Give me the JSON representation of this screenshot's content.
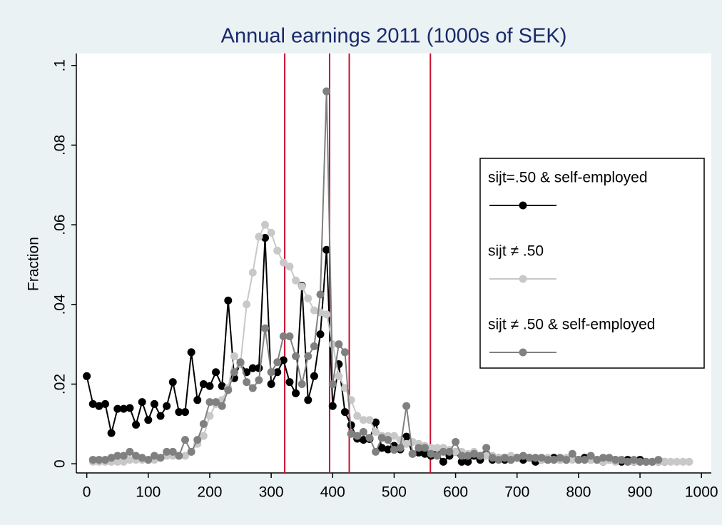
{
  "chart_data": {
    "type": "line",
    "title": "Annual earnings 2011 (1000s of SEK)",
    "y_label": "Fraction",
    "x": [
      0,
      10,
      20,
      30,
      40,
      50,
      60,
      70,
      80,
      90,
      100,
      110,
      120,
      130,
      140,
      150,
      160,
      170,
      180,
      190,
      200,
      210,
      220,
      230,
      240,
      250,
      260,
      270,
      280,
      290,
      300,
      310,
      320,
      330,
      340,
      350,
      360,
      370,
      380,
      390,
      400,
      410,
      420,
      430,
      440,
      450,
      460,
      470,
      480,
      490,
      500,
      510,
      520,
      530,
      540,
      550,
      560,
      570,
      580,
      590,
      600,
      610,
      620,
      630,
      640,
      650,
      660,
      670,
      680,
      690,
      700,
      710,
      720,
      730,
      740,
      750,
      760,
      770,
      780,
      790,
      800,
      810,
      820,
      830,
      840,
      850,
      860,
      870,
      880,
      890,
      900,
      910,
      920,
      930,
      940,
      950,
      960,
      970,
      980
    ],
    "series": [
      {
        "name": "sijt=.50 & self-employed",
        "color": "#000000",
        "values": [
          0.022,
          0.015,
          0.0145,
          0.015,
          0.0077,
          0.0138,
          0.0138,
          0.014,
          0.0098,
          0.0155,
          0.011,
          0.015,
          0.012,
          0.0145,
          0.0205,
          0.013,
          0.013,
          0.028,
          0.016,
          0.02,
          0.0195,
          0.023,
          0.0195,
          0.041,
          0.0215,
          0.0252,
          0.023,
          0.024,
          0.024,
          0.0567,
          0.02,
          0.023,
          0.026,
          0.0205,
          0.0177,
          0.0447,
          0.016,
          0.022,
          0.0325,
          0.0537,
          0.0145,
          0.025,
          0.013,
          0.0097,
          0.0063,
          0.006,
          0.0062,
          0.0104,
          0.004,
          0.0036,
          0.0045,
          0.0036,
          0.0068,
          0.0025,
          0.0028,
          0.0025,
          0.002,
          0.0025,
          0.0005,
          0.002,
          0.003,
          0.0005,
          0.0005,
          0.002,
          0.001,
          0.0025,
          0.001,
          0.0015,
          0.001,
          0.001,
          0.0015,
          0.001,
          0.0015,
          0.0005,
          0.001,
          0.001,
          0.0015,
          0.001,
          0.001,
          0.0015,
          0.001,
          0.0015,
          0.001,
          0.001,
          0.0005,
          0.001,
          0.001,
          0.0005,
          0.001,
          0.0005,
          0.001,
          0.0005,
          0.0005,
          0.0005,
          0.0005,
          null,
          null,
          null,
          null
        ]
      },
      {
        "name": "sijt ≠ .50",
        "color": "#c8c8c8",
        "values": [
          null,
          0.0005,
          0.0005,
          0.0005,
          0.0005,
          0.0005,
          0.0005,
          0.001,
          0.001,
          0.001,
          0.001,
          0.001,
          0.0015,
          0.002,
          0.002,
          0.002,
          0.002,
          0.003,
          0.005,
          0.007,
          0.012,
          0.015,
          0.016,
          0.019,
          0.027,
          0.025,
          0.04,
          0.048,
          0.057,
          0.06,
          0.058,
          0.0535,
          0.0505,
          0.0495,
          0.046,
          0.0445,
          0.0415,
          0.0385,
          0.038,
          0.0375,
          0.03,
          0.022,
          0.019,
          0.016,
          0.012,
          0.011,
          0.011,
          0.008,
          0.007,
          0.007,
          0.007,
          0.006,
          0.005,
          0.0055,
          0.005,
          0.0045,
          0.004,
          0.004,
          0.004,
          0.0035,
          0.003,
          0.003,
          0.0025,
          0.003,
          0.002,
          0.002,
          0.002,
          0.0015,
          0.0015,
          0.002,
          0.0015,
          0.002,
          0.0015,
          0.0015,
          0.001,
          0.0015,
          0.001,
          0.001,
          0.0015,
          0.001,
          0.001,
          0.001,
          0.001,
          0.001,
          0.0005,
          0.001,
          0.0005,
          0.001,
          0.0005,
          0.0005,
          0.0005,
          0.0005,
          0.0005,
          0.0005,
          0.0005,
          0.0005,
          0.0005,
          0.0005,
          0.0005
        ]
      },
      {
        "name": "sijt ≠ .50 & self-employed",
        "color": "#808080",
        "values": [
          null,
          0.001,
          0.001,
          0.001,
          0.0015,
          0.002,
          0.002,
          0.003,
          0.002,
          0.0015,
          0.001,
          0.002,
          0.0015,
          0.003,
          0.003,
          0.002,
          0.006,
          0.003,
          0.006,
          0.01,
          0.0155,
          0.0155,
          0.0145,
          0.0185,
          0.023,
          0.0255,
          0.0205,
          0.019,
          0.021,
          0.034,
          0.023,
          0.0255,
          0.032,
          0.032,
          0.027,
          0.02,
          0.027,
          0.0295,
          0.0425,
          0.0935,
          0.02,
          0.03,
          0.028,
          0.0075,
          0.007,
          0.008,
          0.0065,
          0.003,
          0.0065,
          0.006,
          0.0035,
          0.004,
          0.0145,
          0.0025,
          0.004,
          0.004,
          0.0025,
          0.002,
          0.003,
          0.003,
          0.0055,
          0.002,
          0.002,
          0.0025,
          0.002,
          0.004,
          0.0015,
          0.001,
          0.0015,
          0.001,
          0.0015,
          0.002,
          0.0015,
          0.0015,
          0.0015,
          0.001,
          0.001,
          0.0015,
          0.001,
          0.0025,
          0.001,
          0.001,
          0.002,
          0.001,
          0.0015,
          0.0015,
          0.001,
          0.001,
          0.0005,
          0.001,
          0.0005,
          0.0005,
          0.0005,
          0.001,
          null,
          null,
          null,
          null,
          null
        ]
      }
    ],
    "reference_lines": {
      "color": "#c8102e",
      "x": [
        322,
        395,
        427,
        559
      ]
    },
    "xlim": [
      -17,
      1016
    ],
    "xticks": [
      0,
      100,
      200,
      300,
      400,
      500,
      600,
      700,
      800,
      900,
      1000
    ],
    "ylim": [
      -0.0023,
      0.103
    ],
    "yticks": [
      0,
      {
        "value": 0.02,
        "label": ".02"
      },
      {
        "value": 0.04,
        "label": ".04"
      },
      {
        "value": 0.06,
        "label": ".06"
      },
      {
        "value": 0.08,
        "label": ".08"
      },
      {
        "value": 0.1,
        "label": ".1"
      }
    ],
    "grid": false,
    "legend": "right"
  }
}
